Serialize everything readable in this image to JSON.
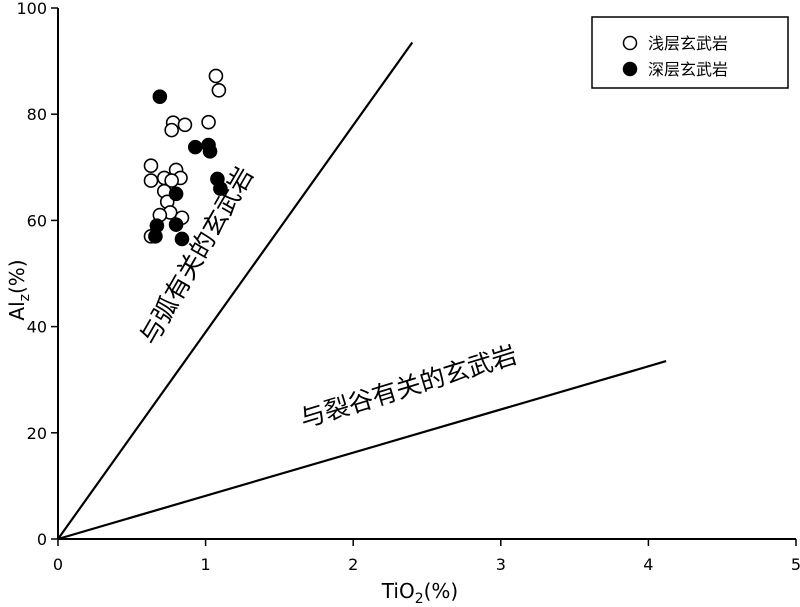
{
  "chart_data": {
    "type": "scatter",
    "title": "",
    "xlabel": "TiO₂(%)",
    "ylabel": "Al₂(%)",
    "xlim": [
      0,
      5
    ],
    "ylim": [
      0,
      100
    ],
    "xticks": [
      "0",
      "1",
      "2",
      "3",
      "4",
      "5"
    ],
    "yticks": [
      "0",
      "20",
      "40",
      "60",
      "80",
      "100"
    ],
    "grid": false,
    "legend_position": "top-right",
    "series": [
      {
        "name": "浅层玄武岩",
        "marker": "open-circle",
        "color": "#000000",
        "points": [
          {
            "x": 1.07,
            "y": 87.2
          },
          {
            "x": 1.09,
            "y": 84.5
          },
          {
            "x": 0.78,
            "y": 78.4
          },
          {
            "x": 0.86,
            "y": 78.0
          },
          {
            "x": 1.02,
            "y": 78.5
          },
          {
            "x": 0.77,
            "y": 77.0
          },
          {
            "x": 0.63,
            "y": 70.3
          },
          {
            "x": 0.8,
            "y": 69.5
          },
          {
            "x": 0.72,
            "y": 68.0
          },
          {
            "x": 0.83,
            "y": 68.0
          },
          {
            "x": 0.63,
            "y": 67.5
          },
          {
            "x": 0.77,
            "y": 67.5
          },
          {
            "x": 0.72,
            "y": 65.5
          },
          {
            "x": 0.74,
            "y": 63.5
          },
          {
            "x": 0.76,
            "y": 61.5
          },
          {
            "x": 0.69,
            "y": 61.0
          },
          {
            "x": 0.84,
            "y": 60.5
          },
          {
            "x": 0.63,
            "y": 57.0
          }
        ]
      },
      {
        "name": "深层玄武岩",
        "marker": "filled-circle",
        "color": "#000000",
        "points": [
          {
            "x": 0.69,
            "y": 83.3
          },
          {
            "x": 0.93,
            "y": 73.8
          },
          {
            "x": 1.02,
            "y": 74.2
          },
          {
            "x": 1.03,
            "y": 73.0
          },
          {
            "x": 1.08,
            "y": 67.8
          },
          {
            "x": 1.1,
            "y": 66.0
          },
          {
            "x": 0.8,
            "y": 65.0
          },
          {
            "x": 0.8,
            "y": 59.2
          },
          {
            "x": 0.67,
            "y": 59.0
          },
          {
            "x": 0.66,
            "y": 57.0
          },
          {
            "x": 0.84,
            "y": 56.5
          }
        ]
      }
    ],
    "reference_lines": [
      {
        "from": [
          0,
          0
        ],
        "to": [
          2.4,
          93.5
        ]
      },
      {
        "from": [
          0,
          0
        ],
        "to": [
          4.12,
          33.5
        ]
      }
    ],
    "annotations": [
      {
        "text": "与弧有关的玄武岩"
      },
      {
        "text": "与裂谷有关的玄武岩"
      }
    ]
  }
}
